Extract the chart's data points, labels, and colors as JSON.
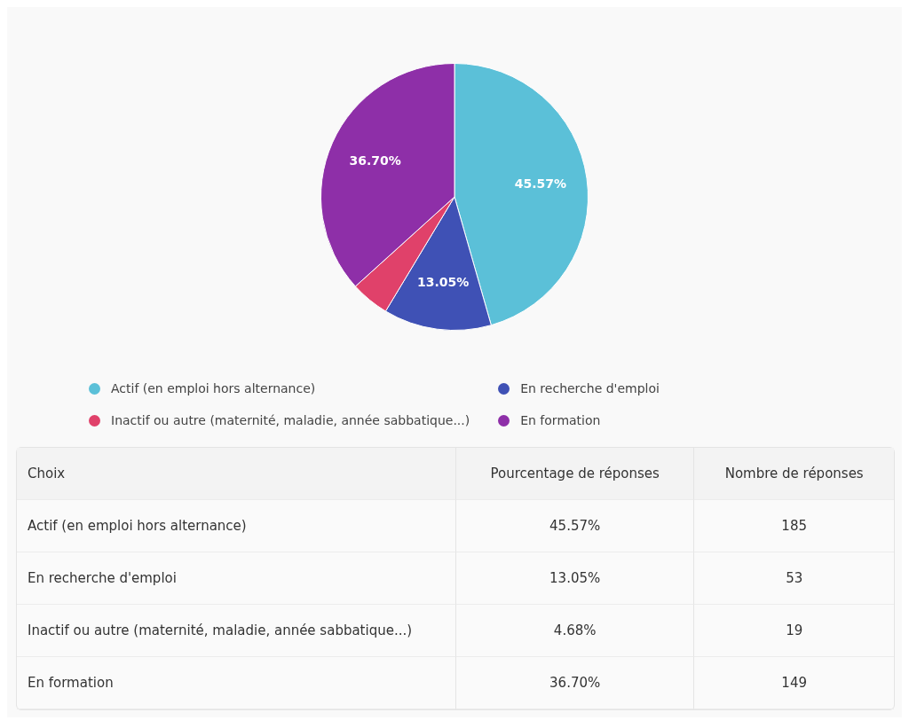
{
  "chart_data": [
    {
      "type": "pie",
      "categories": [
        "Actif (en emploi hors alternance)",
        "En recherche d'emploi",
        "Inactif ou autre (maternité, maladie, année sabbatique...)",
        "En formation"
      ],
      "values": [
        45.57,
        13.05,
        4.68,
        36.7
      ],
      "value_labels": [
        "45.57%",
        "13.05%",
        null,
        "36.70%"
      ],
      "colors": [
        "#5bc0d8",
        "#3f51b5",
        "#e0416a",
        "#8e2fa8"
      ],
      "legend": "bottom"
    },
    {
      "type": "other",
      "annotations": [
        "Choix"
      ],
      "categories": [
        "Actif (en emploi hors alternance)",
        "En recherche d'emploi",
        "Inactif ou autre (maternité, maladie, année sabbatique...)",
        "En formation"
      ],
      "series": [
        {
          "name": "Pourcentage de réponses",
          "values": [
            45.57,
            13.05,
            4.68,
            36.7
          ],
          "value_labels": [
            "45.57%",
            "13.05%",
            "4.68%",
            "36.70%"
          ]
        },
        {
          "name": "Nombre de réponses",
          "values": [
            185,
            53,
            19,
            149
          ]
        }
      ],
      "data_labels": true
    }
  ]
}
